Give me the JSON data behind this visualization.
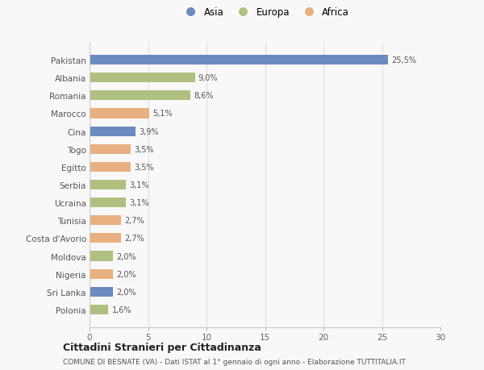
{
  "countries": [
    "Pakistan",
    "Albania",
    "Romania",
    "Marocco",
    "Cina",
    "Togo",
    "Egitto",
    "Serbia",
    "Ucraina",
    "Tunisia",
    "Costa d'Avorio",
    "Moldova",
    "Nigeria",
    "Sri Lanka",
    "Polonia"
  ],
  "values": [
    25.5,
    9.0,
    8.6,
    5.1,
    3.9,
    3.5,
    3.5,
    3.1,
    3.1,
    2.7,
    2.7,
    2.0,
    2.0,
    2.0,
    1.6
  ],
  "labels": [
    "25,5%",
    "9,0%",
    "8,6%",
    "5,1%",
    "3,9%",
    "3,5%",
    "3,5%",
    "3,1%",
    "3,1%",
    "2,7%",
    "2,7%",
    "2,0%",
    "2,0%",
    "2,0%",
    "1,6%"
  ],
  "continents": [
    "Asia",
    "Europa",
    "Europa",
    "Africa",
    "Asia",
    "Africa",
    "Africa",
    "Europa",
    "Europa",
    "Africa",
    "Africa",
    "Europa",
    "Africa",
    "Asia",
    "Europa"
  ],
  "colors": {
    "Asia": "#6b8cbe",
    "Europa": "#b0c080",
    "Africa": "#e8b080"
  },
  "xlim": [
    0,
    30
  ],
  "xticks": [
    0,
    5,
    10,
    15,
    20,
    25,
    30
  ],
  "title": "Cittadini Stranieri per Cittadinanza",
  "subtitle": "COMUNE DI BESNATE (VA) - Dati ISTAT al 1° gennaio di ogni anno - Elaborazione TUTTITALIA.IT",
  "background_color": "#f8f8f8",
  "grid_color": "#e0e0e0",
  "bar_height": 0.55
}
